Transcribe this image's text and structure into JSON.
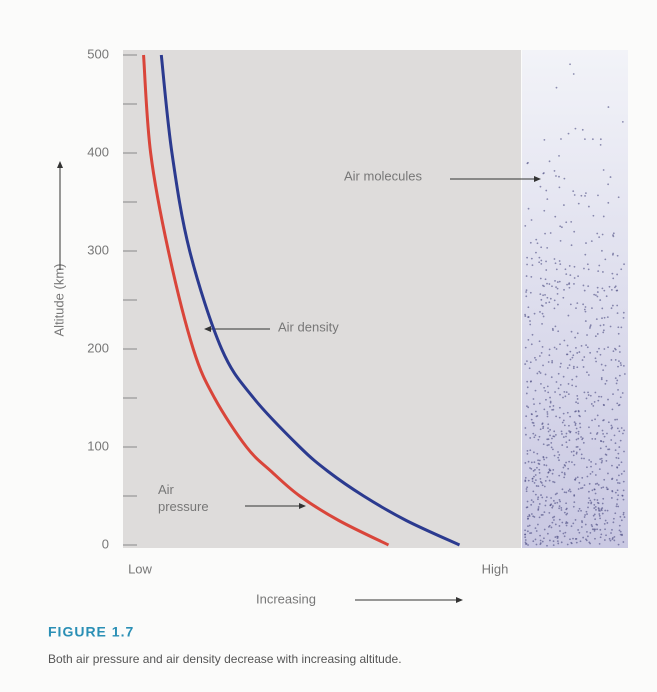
{
  "chart_data": {
    "type": "line",
    "y_label": "Altitude (km)",
    "x_label": "Increasing",
    "xlim": [
      0,
      1
    ],
    "xticks": [
      {
        "value": 0,
        "label": "Low"
      },
      {
        "value": 1,
        "label": "High"
      }
    ],
    "ylim": [
      0,
      500
    ],
    "yticks": [
      0,
      100,
      200,
      300,
      400,
      500
    ],
    "yminorticks": [
      50,
      150,
      250,
      350,
      450
    ],
    "series": [
      {
        "name": "Air pressure",
        "color": "#d9453a",
        "x": [
          0.7,
          0.56,
          0.45,
          0.37,
          0.3,
          0.21,
          0.15,
          0.08,
          0.03,
          0.01
        ],
        "values": [
          0,
          25,
          50,
          75,
          100,
          150,
          200,
          300,
          400,
          500
        ]
      },
      {
        "name": "Air density",
        "color": "#2b3a8f",
        "x": [
          0.9,
          0.75,
          0.63,
          0.53,
          0.45,
          0.32,
          0.23,
          0.14,
          0.09,
          0.06
        ],
        "values": [
          0,
          25,
          50,
          75,
          100,
          150,
          200,
          300,
          400,
          500
        ]
      }
    ],
    "annotation": "Air molecules",
    "figure_label": "FIGURE 1.7",
    "caption": "Both air pressure and air density decrease with increasing altitude."
  }
}
